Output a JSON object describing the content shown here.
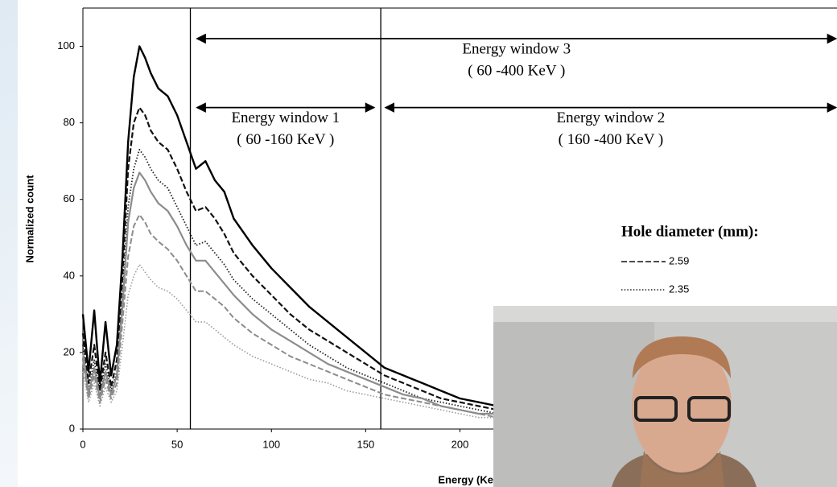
{
  "chart_data": {
    "type": "line",
    "y_label": "Normalized count",
    "x_label": "Energy (Ke",
    "xlim": [
      0,
      400
    ],
    "ylim": [
      0,
      110
    ],
    "xticks": [
      0,
      50,
      100,
      150,
      200
    ],
    "yticks": [
      0,
      20,
      40,
      60,
      80,
      100
    ],
    "x": [
      0,
      3,
      6,
      9,
      12,
      15,
      18,
      21,
      24,
      27,
      30,
      33,
      36,
      40,
      45,
      50,
      55,
      60,
      65,
      70,
      75,
      80,
      90,
      100,
      110,
      120,
      130,
      140,
      150,
      160,
      170,
      180,
      190,
      200,
      210,
      220
    ],
    "series": [
      {
        "color": "#000000",
        "style": "solid",
        "width": 2.4,
        "values": [
          30,
          15,
          31,
          12,
          28,
          14,
          22,
          45,
          75,
          92,
          100,
          97,
          93,
          89,
          87,
          82,
          75,
          68,
          70,
          65,
          62,
          55,
          48,
          42,
          37,
          32,
          28,
          24,
          20,
          16,
          14,
          12,
          10,
          8,
          7,
          6
        ]
      },
      {
        "name": "2.59",
        "color": "#111111",
        "style": "dashed",
        "width": 2.2,
        "values": [
          25,
          12,
          22,
          10,
          20,
          11,
          18,
          40,
          68,
          80,
          84,
          82,
          78,
          75,
          73,
          68,
          62,
          57,
          58,
          55,
          51,
          46,
          40,
          35,
          30,
          26,
          23,
          20,
          17,
          14,
          12,
          10,
          8,
          7,
          6,
          5
        ]
      },
      {
        "name": "2.35",
        "color": "#222222",
        "style": "dotted",
        "width": 1.8,
        "values": [
          22,
          10,
          18,
          9,
          17,
          10,
          15,
          35,
          58,
          68,
          73,
          71,
          68,
          65,
          63,
          58,
          53,
          48,
          49,
          46,
          43,
          39,
          34,
          30,
          26,
          22,
          19,
          16,
          14,
          12,
          10,
          8,
          7,
          6,
          5,
          4
        ]
      },
      {
        "color": "#8c8c8c",
        "style": "solid",
        "width": 2.2,
        "values": [
          20,
          9,
          16,
          8,
          15,
          9,
          14,
          32,
          54,
          63,
          67,
          65,
          62,
          59,
          57,
          53,
          48,
          44,
          44,
          41,
          38,
          35,
          30,
          26,
          23,
          20,
          17,
          15,
          13,
          11,
          9,
          8,
          6,
          5,
          4,
          4
        ]
      },
      {
        "color": "#8c8c8c",
        "style": "dashed",
        "width": 2.0,
        "values": [
          18,
          8,
          14,
          7,
          13,
          8,
          12,
          28,
          45,
          53,
          56,
          54,
          51,
          49,
          47,
          44,
          40,
          36,
          36,
          34,
          32,
          29,
          25,
          22,
          19,
          17,
          15,
          13,
          11,
          9,
          8,
          7,
          6,
          5,
          4,
          3
        ]
      },
      {
        "color": "#9a9a9a",
        "style": "dotted",
        "width": 1.6,
        "values": [
          15,
          7,
          12,
          6,
          11,
          7,
          10,
          22,
          35,
          40,
          43,
          41,
          39,
          37,
          36,
          34,
          31,
          28,
          28,
          26,
          24,
          22,
          19,
          17,
          15,
          13,
          12,
          10,
          9,
          8,
          7,
          6,
          5,
          4,
          3,
          3
        ]
      }
    ],
    "window_lines": [
      57,
      158
    ],
    "annotations": [
      {
        "lines": [
          "Energy window 3",
          "( 60 -400 KeV )"
        ],
        "x": [
          60,
          400
        ],
        "y": 102
      },
      {
        "lines": [
          "Energy window 1",
          "( 60 -160 KeV )"
        ],
        "x": [
          60,
          155
        ],
        "y": 84
      },
      {
        "lines": [
          "Energy window 2",
          "( 160 -400 KeV )"
        ],
        "x": [
          160,
          400
        ],
        "y": 84
      }
    ],
    "legend_title": "Hole diameter (mm):"
  }
}
